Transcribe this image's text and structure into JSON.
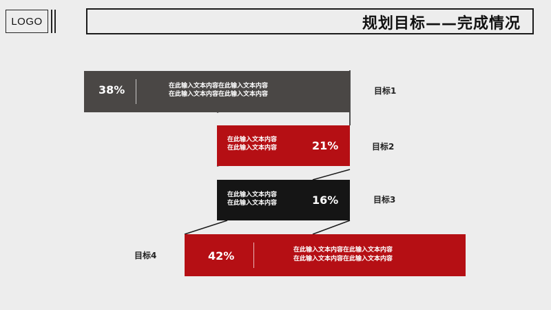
{
  "header": {
    "logo": "LOGO",
    "title": "规划目标——完成情况"
  },
  "goals": [
    {
      "name": "目标1",
      "percent": "38%",
      "line1": "在此输入文本内容在此输入文本内容",
      "line2": "在此输入文本内容在此输入文本内容"
    },
    {
      "name": "目标2",
      "percent": "21%",
      "line1": "在此输入文本内容",
      "line2": "在此输入文本内容"
    },
    {
      "name": "目标3",
      "percent": "16%",
      "line1": "在此输入文本内容",
      "line2": "在此输入文本内容"
    },
    {
      "name": "目标4",
      "percent": "42%",
      "line1": "在此输入文本内容在此输入文本内容",
      "line2": "在此输入文本内容在此输入文本内容"
    }
  ],
  "colors": {
    "dark_gray": "#4a4745",
    "red": "#b50f14",
    "black": "#151515",
    "background": "#ededed"
  }
}
